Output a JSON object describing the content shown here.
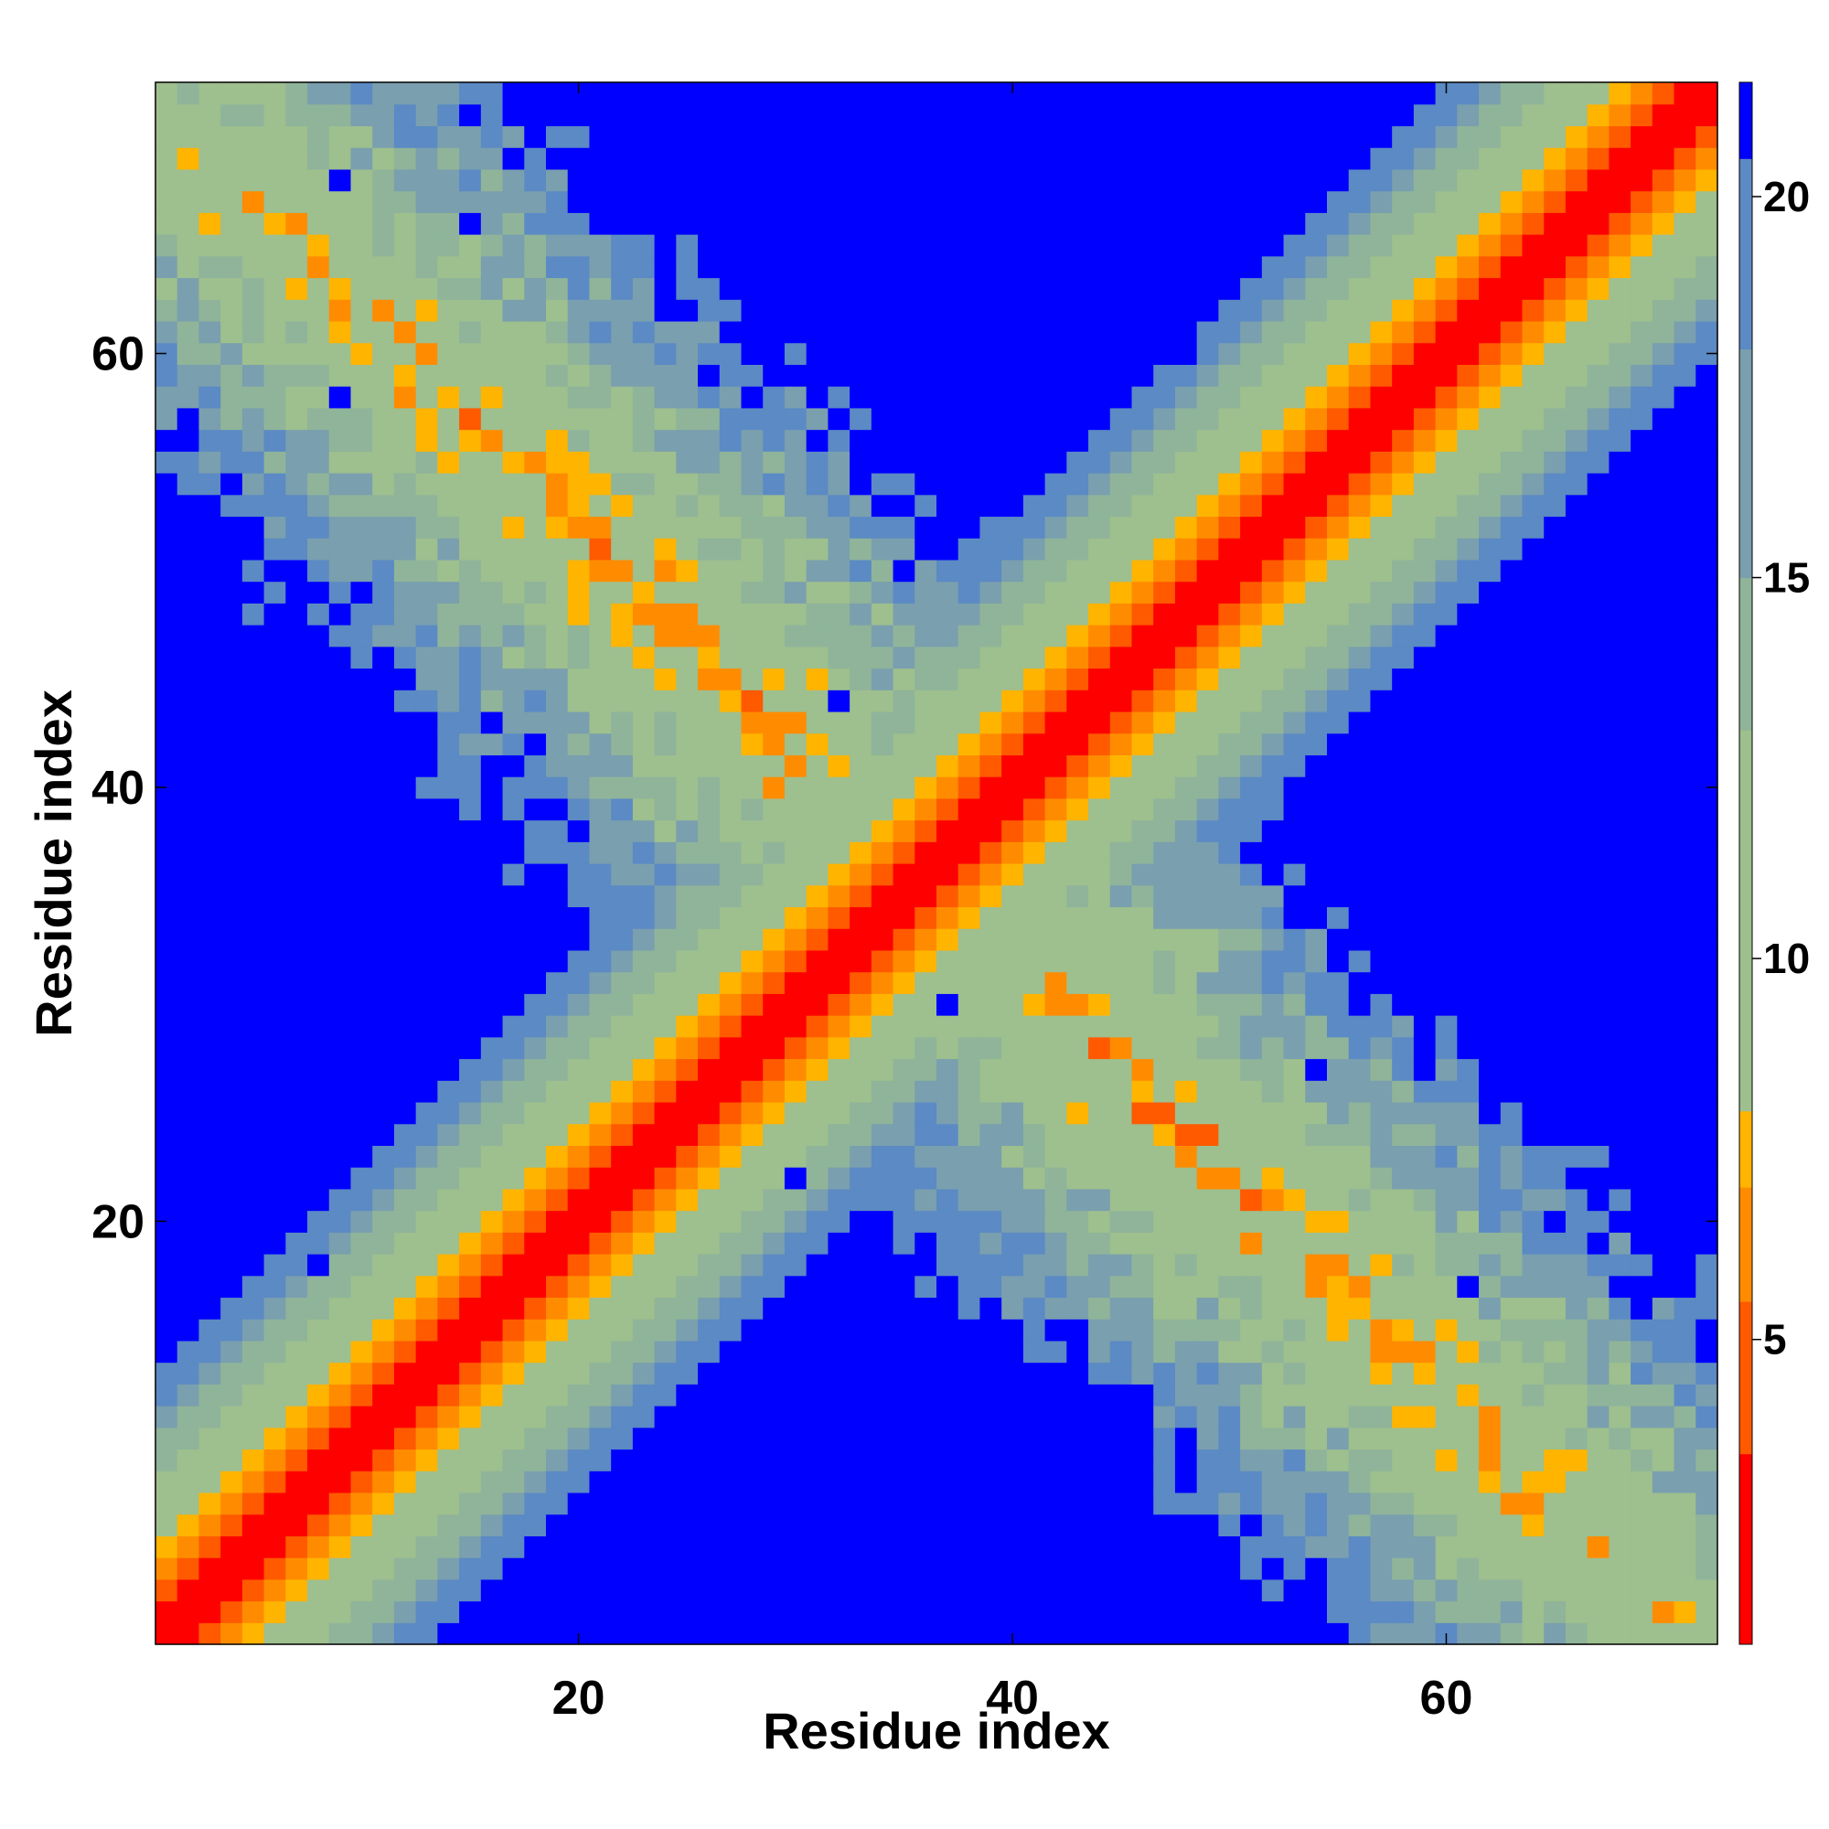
{
  "chart_data": {
    "type": "heatmap",
    "title": "",
    "xlabel": "Residue index",
    "ylabel": "Residue index",
    "n_residues": 72,
    "xlim": [
      0.5,
      72.5
    ],
    "ylim": [
      0.5,
      72.5
    ],
    "xticks": [
      20,
      40,
      60
    ],
    "yticks": [
      20,
      40,
      60
    ],
    "colorbar": {
      "range": [
        1,
        21.5
      ],
      "ticks": [
        5,
        10,
        15,
        20
      ],
      "colors": [
        "#ff0000",
        "#ff5a00",
        "#ff8c00",
        "#ffb400",
        "#9ebf8e",
        "#8fb49a",
        "#7a9fae",
        "#5b8ac4",
        "#0000ff"
      ],
      "boundaries": [
        1,
        3.5,
        5.5,
        7,
        8,
        13,
        15,
        18,
        20.5,
        21.5
      ]
    },
    "cluster_arms": [
      {
        "from": [
          2,
          70
        ],
        "to": [
          30,
          42
        ],
        "half_width": 9,
        "contact": "hairpin"
      },
      {
        "from": [
          70,
          2
        ],
        "to": [
          42,
          30
        ],
        "half_width": 9,
        "contact": "hairpin"
      }
    ],
    "grid": false,
    "legend": "none"
  }
}
